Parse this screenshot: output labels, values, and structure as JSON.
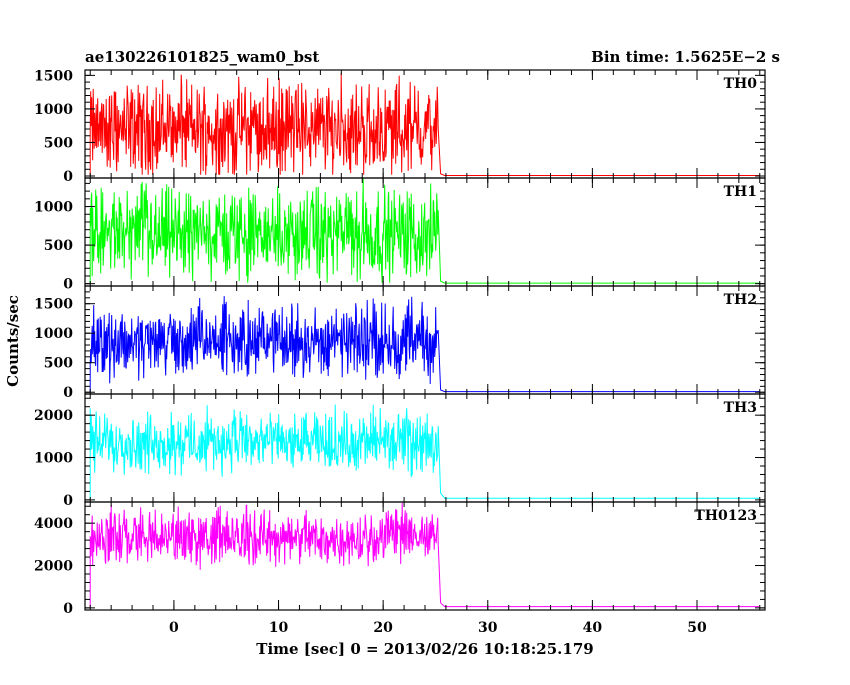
{
  "chart_data": {
    "type": "line",
    "title": "ae130226101825_wam0_bst",
    "bin_time_label": "Bin time: 1.5625E−2 s",
    "xlabel": "Time [sec] 0 = 2013/02/26 10:18:25.179",
    "ylabel": "Counts/sec",
    "xlim": [
      -8.5,
      56.5
    ],
    "x_ticks": [
      0,
      10,
      20,
      30,
      40,
      50
    ],
    "x_tick_labels": [
      "0",
      "10",
      "20",
      "30",
      "40",
      "50"
    ],
    "burst_start": -8.0,
    "burst_end": 25.3,
    "panels": [
      {
        "name": "TH0",
        "color": "#ff0000",
        "ylim": [
          -30,
          1580
        ],
        "y_ticks": [
          0,
          500,
          1000,
          1500
        ],
        "y_tick_labels": [
          "0",
          "500",
          "1000",
          "1500"
        ],
        "burst_level": 700,
        "burst_noise": 380,
        "post_level": 8
      },
      {
        "name": "TH1",
        "color": "#00ff00",
        "ylim": [
          -30,
          1370
        ],
        "y_ticks": [
          0,
          500,
          1000
        ],
        "y_tick_labels": [
          "0",
          "500",
          "1000"
        ],
        "burst_level": 640,
        "burst_noise": 320,
        "post_level": 8
      },
      {
        "name": "TH2",
        "color": "#0000ff",
        "ylim": [
          -30,
          1800
        ],
        "y_ticks": [
          0,
          500,
          1000,
          1500
        ],
        "y_tick_labels": [
          "0",
          "500",
          "1000",
          "1500"
        ],
        "burst_level": 850,
        "burst_noise": 330,
        "post_level": 10
      },
      {
        "name": "TH3",
        "color": "#00ffff",
        "ylim": [
          -50,
          2500
        ],
        "y_ticks": [
          0,
          1000,
          2000
        ],
        "y_tick_labels": [
          "0",
          "1000",
          "2000"
        ],
        "burst_level": 1350,
        "burst_noise": 380,
        "post_level": 40
      },
      {
        "name": "TH0123",
        "color": "#ff00ff",
        "ylim": [
          -100,
          5000
        ],
        "y_ticks": [
          0,
          2000,
          4000
        ],
        "y_tick_labels": [
          "0",
          "2000",
          "4000"
        ],
        "burst_level": 3300,
        "burst_noise": 700,
        "post_level": 60
      }
    ]
  }
}
